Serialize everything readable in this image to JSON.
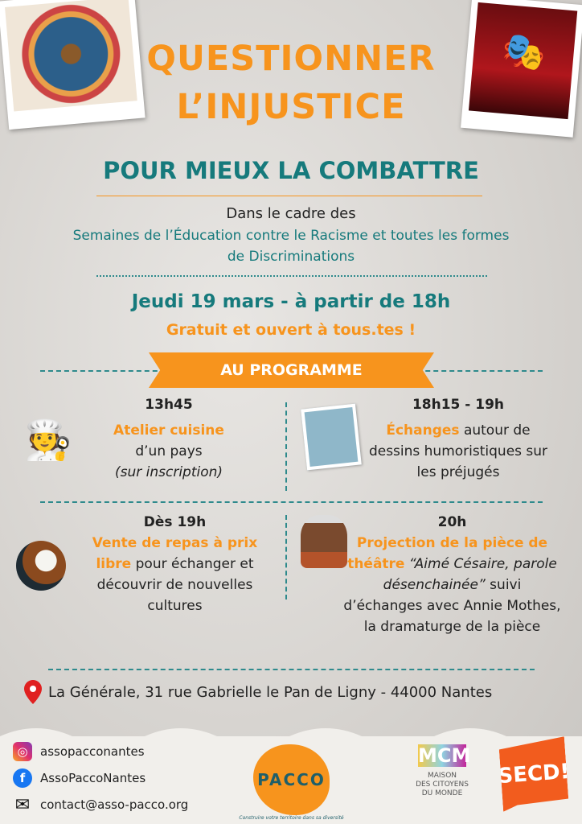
{
  "title": {
    "line1": "QUESTIONNER",
    "line2": "L’INJUSTICE",
    "subtitle": "POUR MIEUX LA COMBATTRE"
  },
  "context": {
    "intro": "Dans le cadre des",
    "line1": "Semaines de l’Éducation contre le Racisme et toutes les formes",
    "line2": "de Discriminations"
  },
  "event": {
    "date": "Jeudi 19 mars - à partir de 18h",
    "access": "Gratuit et ouvert à tous.tes !"
  },
  "banner": "AU PROGRAMME",
  "program": [
    {
      "time": "13h45",
      "highlight": "Atelier cuisine",
      "rest": "d’un pays",
      "note": "(sur inscription)",
      "icon": "chef-icon"
    },
    {
      "time": "18h15 - 19h",
      "highlight": "Échanges",
      "rest": " autour de dessins humoristiques sur les préjugés",
      "icon": "portraits-icon"
    },
    {
      "time": "Dès 19h",
      "highlight": "Vente de repas à prix libre",
      "rest": " pour échanger et découvrir de nouvelles cultures",
      "icon": "meal-icon"
    },
    {
      "time": "20h",
      "highlight": "Projection de la pièce de théâtre",
      "quote": "“Aimé Césaire, parole désenchainée”",
      "rest": " suivi d’échanges avec Annie Mothes, la dramaturge de la pièce",
      "icon": "portrait-icon"
    }
  ],
  "address": "La Générale, 31 rue Gabrielle le Pan de Ligny - 44000 Nantes",
  "footer": {
    "instagram": "assopacconantes",
    "facebook": "AssoPaccoNantes",
    "email": "contact@asso-pacco.org",
    "pacco": {
      "name": "PACCO",
      "tagline": "Construire votre territoire dans sa diversité"
    },
    "mcm": {
      "mark": "MCM",
      "line1": "MAISON",
      "line2": "DES CITOYENS",
      "line3": "DU MONDE"
    },
    "secd": "SECD!"
  },
  "colors": {
    "orange": "#f7941d",
    "teal": "#167a7c"
  }
}
